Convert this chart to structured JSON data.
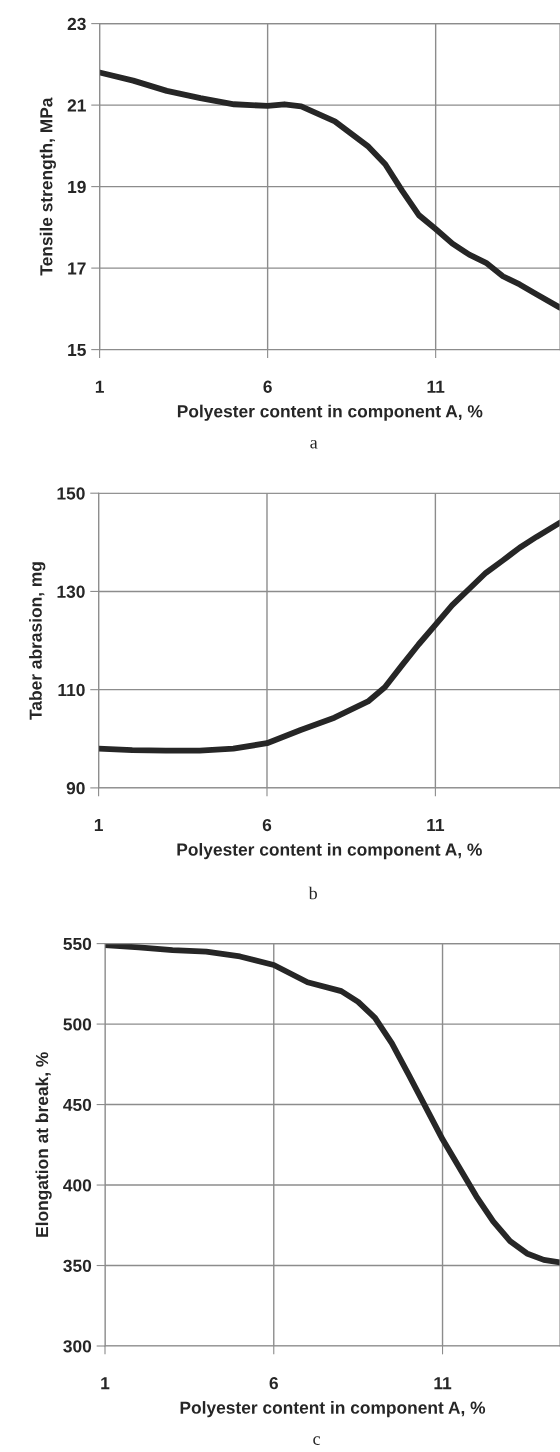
{
  "chart_data": [
    {
      "type": "line",
      "xlabel": "Polyester content in component A, %",
      "ylabel": "Tensile strength, MPa",
      "annotations": [
        "a"
      ],
      "series": [
        {
          "color": "#262626",
          "x": [
            1,
            2,
            3,
            4,
            5,
            6,
            6.5,
            7,
            8,
            9,
            9.5,
            10,
            10.5,
            11,
            11.5,
            12,
            12.5,
            13,
            13.5,
            14,
            14.7
          ],
          "values": [
            21.8,
            21.6,
            21.35,
            21.17,
            21.02,
            20.98,
            21.02,
            20.97,
            20.6,
            19.98,
            19.55,
            18.9,
            18.3,
            17.96,
            17.6,
            17.33,
            17.13,
            16.8,
            16.6,
            16.36,
            16.03
          ]
        }
      ],
      "xlim": [
        1,
        14.7
      ],
      "xticks": [
        1,
        6,
        11
      ],
      "ylim": [
        15,
        23
      ],
      "yticks": [
        15,
        17,
        19,
        21,
        23
      ],
      "grid": true,
      "marker": "none",
      "line_style": "solid"
    },
    {
      "type": "line",
      "xlabel": "Polyester content in component A, %",
      "ylabel": "Taber abrasion, mg",
      "annotations": [
        "b"
      ],
      "series": [
        {
          "color": "#262626",
          "x": [
            1,
            2,
            3,
            4,
            5,
            6,
            7,
            8,
            9,
            9.5,
            10,
            10.5,
            11,
            11.5,
            12,
            12.5,
            13,
            13.5,
            14,
            14.7
          ],
          "values": [
            98.0,
            97.7,
            97.6,
            97.6,
            98.0,
            99.1,
            101.8,
            104.3,
            107.6,
            110.5,
            114.9,
            119.2,
            123.2,
            127.2,
            130.5,
            133.8,
            136.3,
            138.9,
            141.1,
            144.0
          ]
        }
      ],
      "xlim": [
        1,
        14.7
      ],
      "xticks": [
        1,
        6,
        11
      ],
      "ylim": [
        90,
        150
      ],
      "yticks": [
        90,
        110,
        130,
        150
      ],
      "grid": true,
      "marker": "none",
      "line_style": "solid"
    },
    {
      "type": "line",
      "xlabel": "Polyester content in component A, %",
      "ylabel": "Elongation at break, %",
      "annotations": [
        "c"
      ],
      "series": [
        {
          "color": "#262626",
          "x": [
            1,
            2,
            3,
            4,
            5,
            6,
            7,
            8,
            8.5,
            9,
            9.5,
            10,
            10.5,
            11,
            11.5,
            12,
            12.5,
            13,
            13.5,
            14,
            14.48
          ],
          "values": [
            549,
            547.6,
            546,
            545,
            542,
            536.7,
            526,
            520.5,
            513.8,
            503.9,
            488,
            468.4,
            448.4,
            428.4,
            410.7,
            393,
            377.4,
            365.2,
            357.5,
            353.5,
            351.9
          ]
        }
      ],
      "xlim": [
        1,
        14.48
      ],
      "xticks": [
        1,
        6,
        11
      ],
      "ylim": [
        300,
        550
      ],
      "yticks": [
        300,
        350,
        400,
        450,
        500,
        550
      ],
      "grid": true,
      "marker": "none",
      "line_style": "solid"
    }
  ]
}
